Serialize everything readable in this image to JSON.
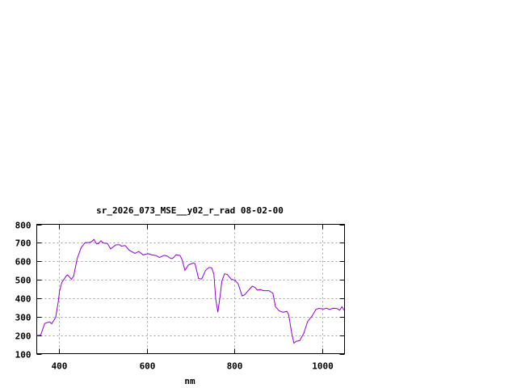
{
  "chart_data": {
    "type": "line",
    "title": "sr_2026_073_MSE__y02_r_rad 08-02-00",
    "xlabel": "nm",
    "ylabel": "",
    "xlim": [
      350,
      1050
    ],
    "ylim": [
      100,
      800
    ],
    "xticks": [
      400,
      600,
      800,
      1000
    ],
    "yticks": [
      100,
      200,
      300,
      400,
      500,
      600,
      700,
      800
    ],
    "grid": true,
    "legend": "none",
    "line_color": "#9400d3",
    "series": [
      {
        "x": [
          350,
          359,
          368,
          379,
          384,
          393,
          399,
          402,
          407,
          417,
          420,
          429,
          434,
          442,
          451,
          460,
          469,
          475,
          480,
          486,
          490,
          496,
          501,
          511,
          518,
          530,
          539,
          542,
          551,
          560,
          573,
          582,
          592,
          603,
          612,
          621,
          629,
          640,
          646,
          655,
          659,
          667,
          676,
          681,
          687,
          695,
          706,
          710,
          718,
          725,
          734,
          742,
          748,
          753,
          757,
          762,
          767,
          771,
          777,
          783,
          792,
          801,
          808,
          817,
          823,
          832,
          840,
          846,
          852,
          859,
          865,
          878,
          887,
          893,
          901,
          910,
          919,
          923,
          930,
          935,
          940,
          948,
          957,
          966,
          976,
          985,
          991,
          1003,
          1009,
          1016,
          1024,
          1033,
          1039,
          1044,
          1050
        ],
        "y": [
          198,
          200,
          263,
          272,
          262,
          296,
          383,
          441,
          485,
          521,
          526,
          502,
          521,
          616,
          674,
          701,
          701,
          707,
          718,
          694,
          695,
          711,
          699,
          696,
          667,
          689,
          689,
          682,
          685,
          660,
          643,
          653,
          634,
          641,
          634,
          631,
          621,
          632,
          629,
          615,
          615,
          635,
          631,
          605,
          551,
          580,
          591,
          587,
          507,
          504,
          551,
          567,
          564,
          529,
          397,
          324,
          412,
          492,
          532,
          529,
          504,
          497,
          478,
          412,
          419,
          444,
          465,
          459,
          444,
          447,
          441,
          441,
          427,
          354,
          332,
          324,
          329,
          310,
          208,
          157,
          167,
          171,
          208,
          274,
          303,
          339,
          345,
          342,
          346,
          339,
          346,
          344,
          335,
          354,
          332
        ]
      }
    ]
  }
}
